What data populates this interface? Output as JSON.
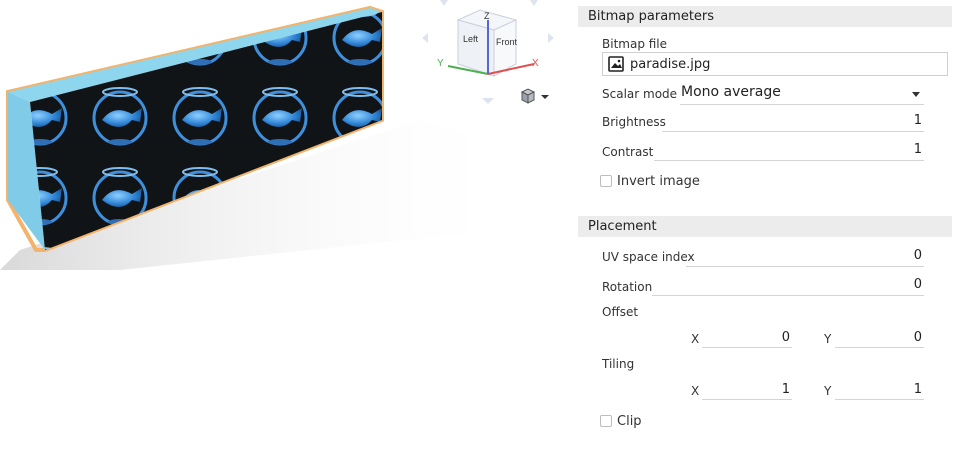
{
  "viewcube": {
    "left_label": "Left",
    "front_label": "Front",
    "z_label": "Z",
    "x_label": "X",
    "y_label": "Y",
    "x_color": "#e05050",
    "y_color": "#4caf50",
    "z_color": "#5566dd"
  },
  "bitmap_section": {
    "title": "Bitmap parameters",
    "bitmap_file_label": "Bitmap file",
    "bitmap_file_value": "paradise.jpg",
    "scalar_mode_label": "Scalar mode",
    "scalar_mode_value": "Mono average",
    "brightness_label": "Brightness",
    "brightness_value": "1",
    "contrast_label": "Contrast",
    "contrast_value": "1",
    "invert_label": "Invert image",
    "invert_checked": false
  },
  "placement_section": {
    "title": "Placement",
    "uv_label": "UV space index",
    "uv_value": "0",
    "rotation_label": "Rotation",
    "rotation_value": "0",
    "offset_label": "Offset",
    "offset_x_label": "X",
    "offset_x_value": "0",
    "offset_y_label": "Y",
    "offset_y_value": "0",
    "tiling_label": "Tiling",
    "tiling_x_label": "X",
    "tiling_x_value": "1",
    "tiling_y_label": "Y",
    "tiling_y_value": "1",
    "clip_label": "Clip",
    "clip_checked": false
  }
}
